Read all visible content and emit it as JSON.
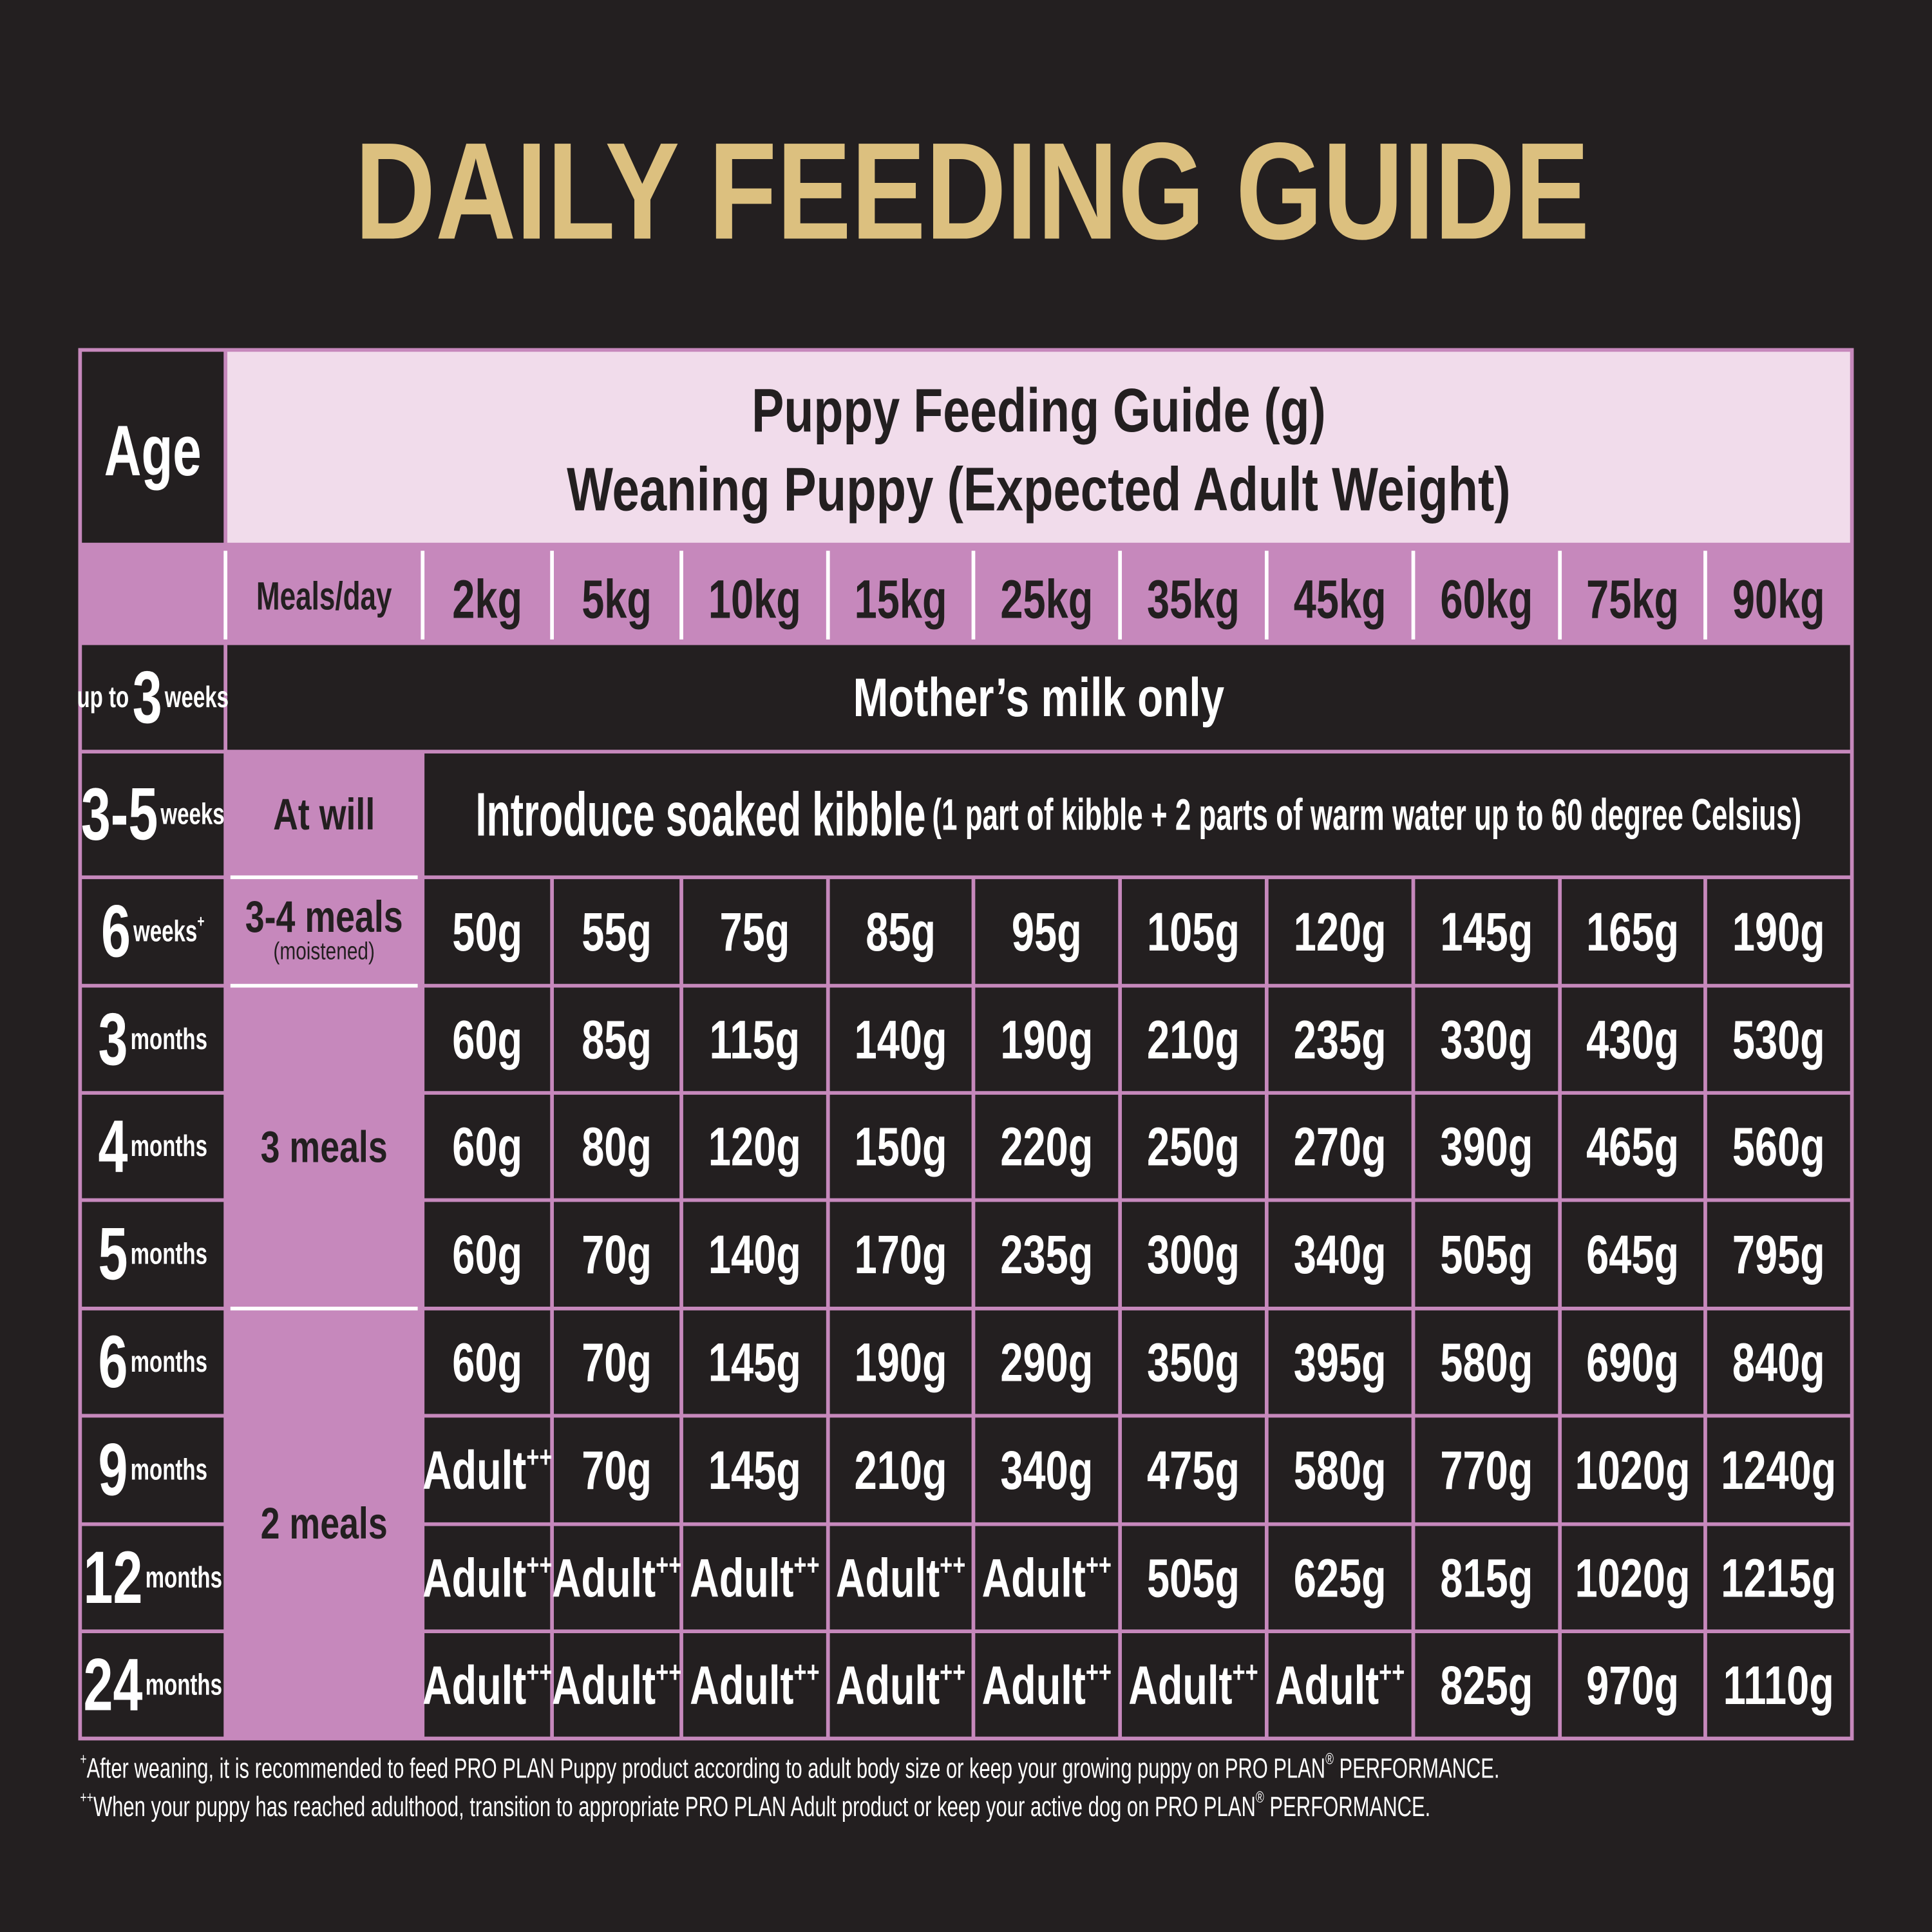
{
  "title": "DAILY FEEDING GUIDE",
  "table": {
    "age_header": "Age",
    "guide_title": [
      "Puppy Feeding Guide (g)",
      "Weaning Puppy (Expected Adult Weight)"
    ],
    "meals_header": "Meals/day",
    "weights": [
      "2kg",
      "5kg",
      "10kg",
      "15kg",
      "25kg",
      "35kg",
      "45kg",
      "60kg",
      "75kg",
      "90kg"
    ],
    "meals": [
      {
        "text": "At will"
      },
      {
        "text": "3-4 meals",
        "note": "(moistened)"
      },
      {
        "text": "3 meals"
      },
      {
        "text": "2 meals"
      }
    ],
    "rows": [
      {
        "age": {
          "prefix": "up to",
          "num": "3",
          "unit": "weeks"
        },
        "note": {
          "main": "Mother’s milk only"
        }
      },
      {
        "age": {
          "num": "3-5",
          "unit": "weeks"
        },
        "note": {
          "main": "Introduce soaked kibble",
          "detail": "(1 part of kibble + 2 parts of warm water up to 60 degree Celsius)"
        }
      },
      {
        "age": {
          "num": "6",
          "unit": "weeks",
          "sup": "+"
        },
        "values": [
          "50g",
          "55g",
          "75g",
          "85g",
          "95g",
          "105g",
          "120g",
          "145g",
          "165g",
          "190g"
        ]
      },
      {
        "age": {
          "num": "3",
          "unit": "months"
        },
        "values": [
          "60g",
          "85g",
          "115g",
          "140g",
          "190g",
          "210g",
          "235g",
          "330g",
          "430g",
          "530g"
        ]
      },
      {
        "age": {
          "num": "4",
          "unit": "months"
        },
        "values": [
          "60g",
          "80g",
          "120g",
          "150g",
          "220g",
          "250g",
          "270g",
          "390g",
          "465g",
          "560g"
        ]
      },
      {
        "age": {
          "num": "5",
          "unit": "months"
        },
        "values": [
          "60g",
          "70g",
          "140g",
          "170g",
          "235g",
          "300g",
          "340g",
          "505g",
          "645g",
          "795g"
        ]
      },
      {
        "age": {
          "num": "6",
          "unit": "months"
        },
        "values": [
          "60g",
          "70g",
          "145g",
          "190g",
          "290g",
          "350g",
          "395g",
          "580g",
          "690g",
          "840g"
        ]
      },
      {
        "age": {
          "num": "9",
          "unit": "months"
        },
        "values": [
          {
            "text": "Adult",
            "sup": "++"
          },
          "70g",
          "145g",
          "210g",
          "340g",
          "475g",
          "580g",
          "770g",
          "1020g",
          "1240g"
        ]
      },
      {
        "age": {
          "num": "12",
          "unit": "months"
        },
        "values": [
          {
            "text": "Adult",
            "sup": "++"
          },
          {
            "text": "Adult",
            "sup": "++"
          },
          {
            "text": "Adult",
            "sup": "++"
          },
          {
            "text": "Adult",
            "sup": "++"
          },
          {
            "text": "Adult",
            "sup": "++"
          },
          "505g",
          "625g",
          "815g",
          "1020g",
          "1215g"
        ]
      },
      {
        "age": {
          "num": "24",
          "unit": "months"
        },
        "values": [
          {
            "text": "Adult",
            "sup": "++"
          },
          {
            "text": "Adult",
            "sup": "++"
          },
          {
            "text": "Adult",
            "sup": "++"
          },
          {
            "text": "Adult",
            "sup": "++"
          },
          {
            "text": "Adult",
            "sup": "++"
          },
          {
            "text": "Adult",
            "sup": "++"
          },
          {
            "text": "Adult",
            "sup": "++"
          },
          "825g",
          "970g",
          "1110g"
        ]
      }
    ]
  },
  "footnotes": [
    [
      {
        "sup": "+"
      },
      {
        "text": "After weaning, it is recommended to feed PRO PLAN Puppy product according to adult body size or keep your growing puppy on PRO PLAN"
      },
      {
        "sup": "®"
      },
      {
        "text": " PERFORMANCE."
      }
    ],
    [
      {
        "sup": "++"
      },
      {
        "text": "When your puppy has reached adulthood, transition to appropriate PRO PLAN Adult product or keep your active dog on PRO PLAN"
      },
      {
        "sup": "®"
      },
      {
        "text": " PERFORMANCE."
      }
    ]
  ]
}
